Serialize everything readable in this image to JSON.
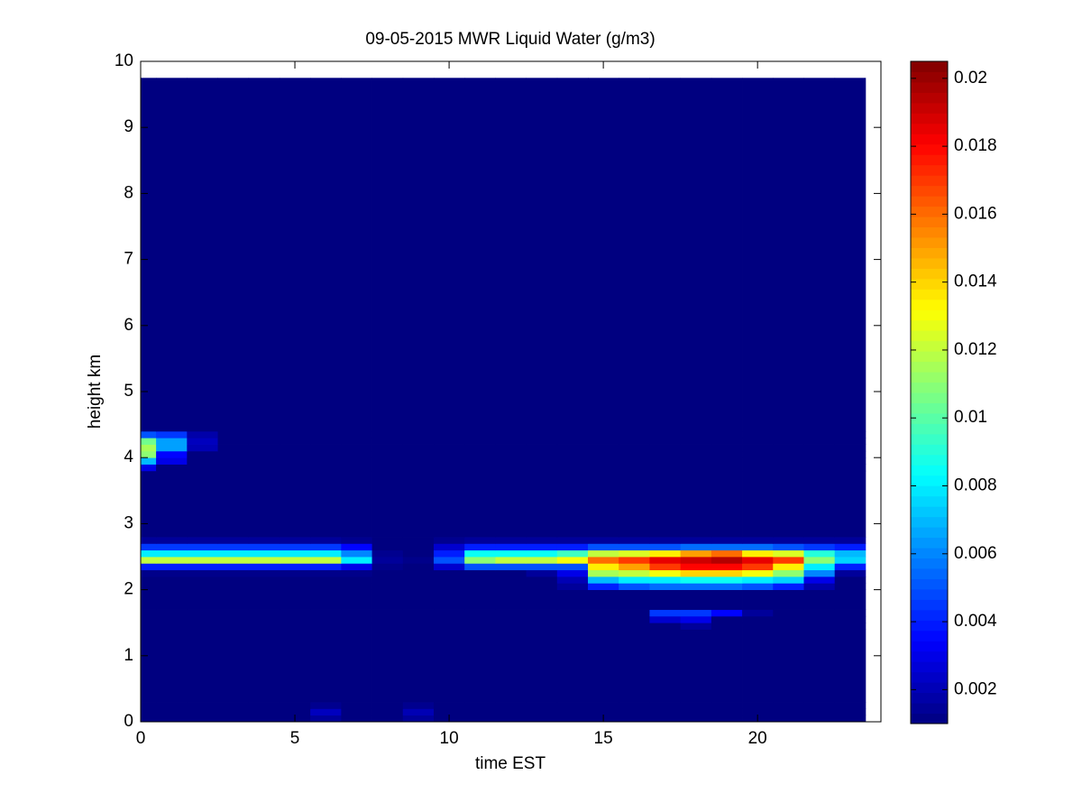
{
  "chart_data": {
    "type": "heatmap",
    "title": "09-05-2015 MWR Liquid Water (g/m3)",
    "xlabel": "time EST",
    "ylabel": "height km",
    "xlim": [
      0,
      24
    ],
    "ylim": [
      0,
      10
    ],
    "xticks": [
      0,
      5,
      10,
      15,
      20
    ],
    "yticks": [
      0,
      1,
      2,
      3,
      4,
      5,
      6,
      7,
      8,
      9,
      10
    ],
    "colormap": "jet",
    "clim": [
      0.001,
      0.0205
    ],
    "cticks": [
      0.002,
      0.004,
      0.006,
      0.008,
      0.01,
      0.012,
      0.014,
      0.016,
      0.018,
      0.02
    ],
    "x_edges": [
      0,
      0.5,
      1.5,
      2.5,
      3.5,
      4.5,
      5.5,
      6.5,
      7.5,
      8.5,
      9.5,
      10.5,
      11.5,
      12.5,
      13.5,
      14.5,
      15.5,
      16.5,
      17.5,
      18.5,
      19.5,
      20.5,
      21.5,
      22.5,
      23.5
    ],
    "y_edges": [
      0,
      0.1,
      0.2,
      0.3,
      1.4,
      1.5,
      1.6,
      1.7,
      2.0,
      2.1,
      2.2,
      2.3,
      2.4,
      2.5,
      2.6,
      2.7,
      2.8,
      3.8,
      3.9,
      4.0,
      4.1,
      4.2,
      4.3,
      4.4,
      9.75
    ],
    "values": [
      [
        0.001,
        0.001,
        0.001,
        0.001,
        0.001,
        0.001,
        0.0015,
        0.001,
        0.001,
        0.0015,
        0.001,
        0.001,
        0.001,
        0.001,
        0.001,
        0.001,
        0.001,
        0.001,
        0.001,
        0.001,
        0.001,
        0.001,
        0.001,
        0.001
      ],
      [
        0.001,
        0.001,
        0.001,
        0.001,
        0.001,
        0.001,
        0.0022,
        0.001,
        0.001,
        0.002,
        0.001,
        0.001,
        0.001,
        0.001,
        0.001,
        0.001,
        0.001,
        0.001,
        0.001,
        0.001,
        0.001,
        0.001,
        0.001,
        0.001
      ],
      [
        0.001,
        0.001,
        0.001,
        0.001,
        0.001,
        0.001,
        0.0013,
        0.001,
        0.001,
        0.0013,
        0.001,
        0.001,
        0.001,
        0.001,
        0.001,
        0.001,
        0.001,
        0.001,
        0.001,
        0.001,
        0.001,
        0.001,
        0.001,
        0.001
      ],
      [
        0.001,
        0.001,
        0.001,
        0.001,
        0.001,
        0.001,
        0.001,
        0.001,
        0.001,
        0.001,
        0.001,
        0.001,
        0.001,
        0.001,
        0.001,
        0.001,
        0.001,
        0.001,
        0.001,
        0.001,
        0.001,
        0.001,
        0.001,
        0.001
      ],
      [
        0.001,
        0.001,
        0.001,
        0.001,
        0.001,
        0.001,
        0.001,
        0.001,
        0.001,
        0.001,
        0.001,
        0.001,
        0.001,
        0.001,
        0.001,
        0.001,
        0.001,
        0.001,
        0.0015,
        0.001,
        0.001,
        0.001,
        0.001,
        0.001
      ],
      [
        0.001,
        0.001,
        0.001,
        0.001,
        0.001,
        0.001,
        0.001,
        0.001,
        0.001,
        0.001,
        0.001,
        0.001,
        0.001,
        0.001,
        0.001,
        0.001,
        0.001,
        0.0025,
        0.003,
        0.001,
        0.001,
        0.001,
        0.001,
        0.001
      ],
      [
        0.001,
        0.001,
        0.001,
        0.001,
        0.001,
        0.001,
        0.001,
        0.001,
        0.001,
        0.001,
        0.001,
        0.001,
        0.001,
        0.001,
        0.001,
        0.001,
        0.001,
        0.0045,
        0.0045,
        0.0035,
        0.0015,
        0.001,
        0.001,
        0.001
      ],
      [
        0.001,
        0.001,
        0.001,
        0.001,
        0.001,
        0.001,
        0.001,
        0.001,
        0.001,
        0.001,
        0.001,
        0.001,
        0.001,
        0.001,
        0.001,
        0.001,
        0.001,
        0.001,
        0.001,
        0.001,
        0.001,
        0.001,
        0.001,
        0.001
      ],
      [
        0.001,
        0.001,
        0.001,
        0.001,
        0.001,
        0.001,
        0.001,
        0.001,
        0.001,
        0.001,
        0.001,
        0.001,
        0.001,
        0.001,
        0.0015,
        0.004,
        0.005,
        0.0055,
        0.0055,
        0.0055,
        0.005,
        0.004,
        0.0018,
        0.001
      ],
      [
        0.001,
        0.001,
        0.001,
        0.001,
        0.001,
        0.001,
        0.001,
        0.001,
        0.001,
        0.001,
        0.001,
        0.001,
        0.001,
        0.001,
        0.002,
        0.007,
        0.008,
        0.008,
        0.0085,
        0.0085,
        0.008,
        0.0075,
        0.003,
        0.001
      ],
      [
        0.0012,
        0.0012,
        0.0012,
        0.0012,
        0.0012,
        0.0012,
        0.0012,
        0.0012,
        0.001,
        0.001,
        0.001,
        0.001,
        0.001,
        0.0015,
        0.003,
        0.0115,
        0.012,
        0.013,
        0.014,
        0.014,
        0.013,
        0.011,
        0.006,
        0.0015
      ],
      [
        0.004,
        0.004,
        0.004,
        0.004,
        0.004,
        0.004,
        0.004,
        0.003,
        0.0012,
        0.001,
        0.0025,
        0.005,
        0.005,
        0.005,
        0.005,
        0.0135,
        0.015,
        0.017,
        0.018,
        0.018,
        0.017,
        0.0135,
        0.008,
        0.004
      ],
      [
        0.012,
        0.012,
        0.012,
        0.012,
        0.012,
        0.012,
        0.012,
        0.008,
        0.0015,
        0.0012,
        0.005,
        0.011,
        0.012,
        0.012,
        0.013,
        0.016,
        0.017,
        0.0185,
        0.019,
        0.0195,
        0.0185,
        0.017,
        0.011,
        0.0075
      ],
      [
        0.008,
        0.008,
        0.008,
        0.008,
        0.008,
        0.008,
        0.008,
        0.006,
        0.0013,
        0.001,
        0.004,
        0.0085,
        0.0085,
        0.0085,
        0.0095,
        0.012,
        0.0125,
        0.0135,
        0.015,
        0.016,
        0.0135,
        0.0125,
        0.009,
        0.007
      ],
      [
        0.0045,
        0.0045,
        0.0045,
        0.0045,
        0.0045,
        0.0045,
        0.0045,
        0.0035,
        0.001,
        0.001,
        0.0025,
        0.004,
        0.004,
        0.004,
        0.004,
        0.005,
        0.005,
        0.005,
        0.0055,
        0.0055,
        0.0055,
        0.005,
        0.0045,
        0.004
      ],
      [
        0.0015,
        0.0015,
        0.0015,
        0.0015,
        0.0015,
        0.0015,
        0.0015,
        0.0013,
        0.001,
        0.001,
        0.0013,
        0.0015,
        0.0015,
        0.0015,
        0.0015,
        0.0015,
        0.0015,
        0.0015,
        0.0015,
        0.0015,
        0.0015,
        0.0015,
        0.0015,
        0.0015
      ],
      [
        0.001,
        0.001,
        0.001,
        0.001,
        0.001,
        0.001,
        0.001,
        0.001,
        0.001,
        0.001,
        0.001,
        0.001,
        0.001,
        0.001,
        0.001,
        0.001,
        0.001,
        0.001,
        0.001,
        0.001,
        0.001,
        0.001,
        0.001,
        0.001
      ],
      [
        0.003,
        0.001,
        0.001,
        0.001,
        0.001,
        0.001,
        0.001,
        0.001,
        0.001,
        0.001,
        0.001,
        0.001,
        0.001,
        0.001,
        0.001,
        0.001,
        0.001,
        0.001,
        0.001,
        0.001,
        0.001,
        0.001,
        0.001,
        0.001
      ],
      [
        0.007,
        0.003,
        0.001,
        0.001,
        0.001,
        0.001,
        0.001,
        0.001,
        0.001,
        0.001,
        0.001,
        0.001,
        0.001,
        0.001,
        0.001,
        0.001,
        0.001,
        0.001,
        0.001,
        0.001,
        0.001,
        0.001,
        0.001,
        0.001
      ],
      [
        0.011,
        0.0035,
        0.001,
        0.001,
        0.001,
        0.001,
        0.001,
        0.001,
        0.001,
        0.001,
        0.001,
        0.001,
        0.001,
        0.001,
        0.001,
        0.001,
        0.001,
        0.001,
        0.001,
        0.001,
        0.001,
        0.001,
        0.001,
        0.001
      ],
      [
        0.0115,
        0.0065,
        0.002,
        0.001,
        0.001,
        0.001,
        0.001,
        0.001,
        0.001,
        0.001,
        0.001,
        0.001,
        0.001,
        0.001,
        0.001,
        0.001,
        0.001,
        0.001,
        0.001,
        0.001,
        0.001,
        0.001,
        0.001,
        0.001
      ],
      [
        0.0105,
        0.0065,
        0.0022,
        0.001,
        0.001,
        0.001,
        0.001,
        0.001,
        0.001,
        0.001,
        0.001,
        0.001,
        0.001,
        0.001,
        0.001,
        0.001,
        0.001,
        0.001,
        0.001,
        0.001,
        0.001,
        0.001,
        0.001,
        0.001
      ],
      [
        0.005,
        0.0045,
        0.0018,
        0.001,
        0.001,
        0.001,
        0.001,
        0.001,
        0.001,
        0.001,
        0.001,
        0.001,
        0.001,
        0.001,
        0.001,
        0.001,
        0.001,
        0.001,
        0.001,
        0.001,
        0.001,
        0.001,
        0.001,
        0.001
      ],
      [
        0.001,
        0.001,
        0.001,
        0.001,
        0.001,
        0.001,
        0.001,
        0.001,
        0.001,
        0.001,
        0.001,
        0.001,
        0.001,
        0.001,
        0.001,
        0.001,
        0.001,
        0.001,
        0.001,
        0.001,
        0.001,
        0.001,
        0.001,
        0.001
      ]
    ]
  }
}
